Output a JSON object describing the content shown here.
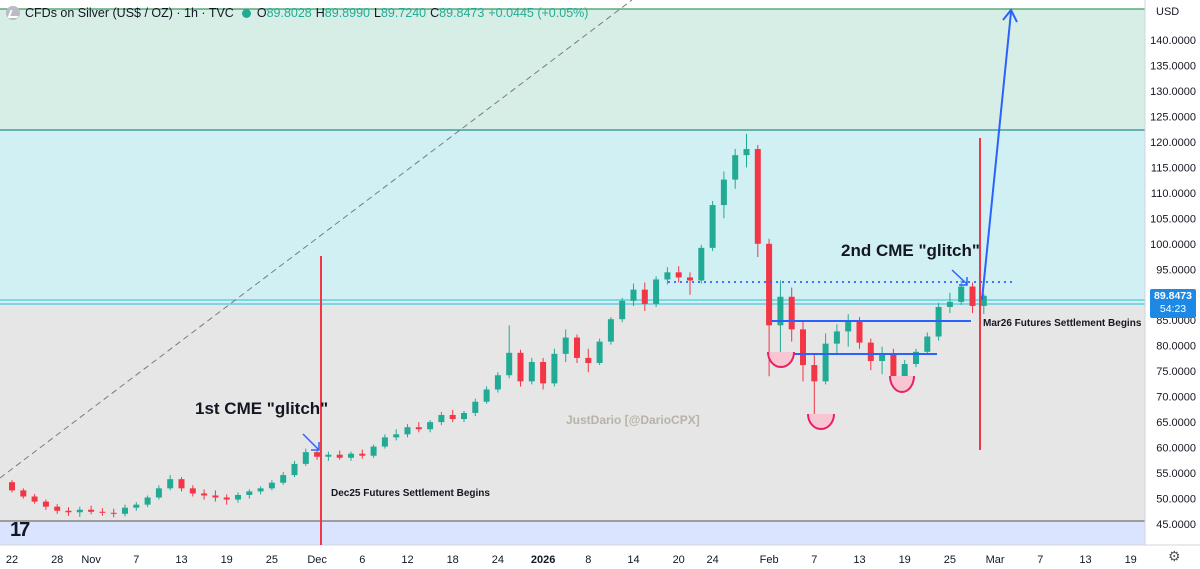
{
  "header": {
    "title": "CFDs on Silver (US$ / OZ) · 1h · TVC",
    "open_label": "O",
    "open": "89.8028",
    "high_label": "H",
    "high": "89.8990",
    "low_label": "L",
    "low": "89.7240",
    "close_label": "C",
    "close": "89.8473",
    "change": "+0.0445 (+0.05%)"
  },
  "currency": "USD",
  "price_tag": {
    "price": "89.8473",
    "countdown": "54:23"
  },
  "watermark": "JustDario [@DarioCPX]",
  "logo": "17",
  "annotations": {
    "first_glitch": "1st CME \"glitch\"",
    "second_glitch": "2nd CME \"glitch\"",
    "dec_settlement": "Dec25 Futures Settlement Begins",
    "mar_settlement": "Mar26 Futures Settlement Begins"
  },
  "colors": {
    "up": "#22ab94",
    "down": "#f23645",
    "band_green": "#d7eee6",
    "band_cyan": "#d0f0f4",
    "band_grey": "#e6e6e6",
    "band_blue": "#dbe4ff",
    "red_line": "#f23645",
    "blue": "#2962ff",
    "level_green": "#3e9b5b",
    "level_teal": "#2a8c8a",
    "level_cyan": "#22c3d6",
    "level_grey": "#787b86"
  },
  "chart_data": {
    "type": "candlestick",
    "y_axis": {
      "unit": "USD",
      "range": [
        42,
        147
      ],
      "ticks": [
        "45.0000",
        "50.0000",
        "55.0000",
        "60.0000",
        "65.0000",
        "70.0000",
        "75.0000",
        "80.0000",
        "85.0000",
        "90.0000",
        "95.0000",
        "100.0000",
        "105.0000",
        "110.0000",
        "115.0000",
        "120.0000",
        "125.0000",
        "130.0000",
        "135.0000",
        "140.0000"
      ]
    },
    "x_axis": {
      "ticks": [
        {
          "label": "22",
          "i": 0
        },
        {
          "label": "28",
          "i": 4
        },
        {
          "label": "Nov",
          "i": 7
        },
        {
          "label": "7",
          "i": 11
        },
        {
          "label": "13",
          "i": 15
        },
        {
          "label": "19",
          "i": 19
        },
        {
          "label": "25",
          "i": 23
        },
        {
          "label": "Dec",
          "i": 27
        },
        {
          "label": "6",
          "i": 31
        },
        {
          "label": "12",
          "i": 35
        },
        {
          "label": "18",
          "i": 39
        },
        {
          "label": "24",
          "i": 43
        },
        {
          "label": "2026",
          "i": 47,
          "bold": true
        },
        {
          "label": "8",
          "i": 51
        },
        {
          "label": "14",
          "i": 55
        },
        {
          "label": "20",
          "i": 59
        },
        {
          "label": "24",
          "i": 62
        },
        {
          "label": "Feb",
          "i": 67
        },
        {
          "label": "7",
          "i": 71
        },
        {
          "label": "13",
          "i": 75
        },
        {
          "label": "19",
          "i": 79
        },
        {
          "label": "25",
          "i": 83
        },
        {
          "label": "Mar",
          "i": 87
        },
        {
          "label": "7",
          "i": 91
        },
        {
          "label": "13",
          "i": 95
        },
        {
          "label": "19",
          "i": 99
        }
      ]
    },
    "series": [
      {
        "values": [
          {
            "i": 0,
            "o": 53.2,
            "h": 53.6,
            "l": 51.2,
            "c": 51.6
          },
          {
            "i": 1,
            "o": 51.6,
            "h": 52.0,
            "l": 50.0,
            "c": 50.4
          },
          {
            "i": 2,
            "o": 50.4,
            "h": 50.9,
            "l": 49.0,
            "c": 49.4
          },
          {
            "i": 3,
            "o": 49.4,
            "h": 49.8,
            "l": 47.8,
            "c": 48.4
          },
          {
            "i": 4,
            "o": 48.4,
            "h": 48.9,
            "l": 47.0,
            "c": 47.6
          },
          {
            "i": 5,
            "o": 47.6,
            "h": 48.3,
            "l": 46.6,
            "c": 47.3
          },
          {
            "i": 6,
            "o": 47.3,
            "h": 48.4,
            "l": 46.4,
            "c": 47.8
          },
          {
            "i": 7,
            "o": 47.8,
            "h": 48.6,
            "l": 46.9,
            "c": 47.4
          },
          {
            "i": 8,
            "o": 47.4,
            "h": 48.1,
            "l": 46.6,
            "c": 47.2
          },
          {
            "i": 9,
            "o": 47.2,
            "h": 48.0,
            "l": 46.3,
            "c": 47.0
          },
          {
            "i": 10,
            "o": 47.0,
            "h": 48.8,
            "l": 46.5,
            "c": 48.2
          },
          {
            "i": 11,
            "o": 48.2,
            "h": 49.3,
            "l": 47.6,
            "c": 48.8
          },
          {
            "i": 12,
            "o": 48.8,
            "h": 50.6,
            "l": 48.3,
            "c": 50.2
          },
          {
            "i": 13,
            "o": 50.2,
            "h": 52.6,
            "l": 49.8,
            "c": 52.0
          },
          {
            "i": 14,
            "o": 52.0,
            "h": 54.6,
            "l": 51.6,
            "c": 53.8
          },
          {
            "i": 15,
            "o": 53.8,
            "h": 54.2,
            "l": 51.4,
            "c": 52.0
          },
          {
            "i": 16,
            "o": 52.0,
            "h": 52.6,
            "l": 50.4,
            "c": 51.0
          },
          {
            "i": 17,
            "o": 51.0,
            "h": 51.8,
            "l": 49.8,
            "c": 50.6
          },
          {
            "i": 18,
            "o": 50.6,
            "h": 51.6,
            "l": 49.4,
            "c": 50.2
          },
          {
            "i": 19,
            "o": 50.2,
            "h": 50.8,
            "l": 48.8,
            "c": 49.8
          },
          {
            "i": 20,
            "o": 49.8,
            "h": 51.2,
            "l": 49.2,
            "c": 50.7
          },
          {
            "i": 21,
            "o": 50.7,
            "h": 51.8,
            "l": 50.0,
            "c": 51.4
          },
          {
            "i": 22,
            "o": 51.4,
            "h": 52.4,
            "l": 50.8,
            "c": 52.0
          },
          {
            "i": 23,
            "o": 52.0,
            "h": 53.6,
            "l": 51.6,
            "c": 53.1
          },
          {
            "i": 24,
            "o": 53.1,
            "h": 55.2,
            "l": 52.7,
            "c": 54.6
          },
          {
            "i": 25,
            "o": 54.6,
            "h": 57.4,
            "l": 54.2,
            "c": 56.8
          },
          {
            "i": 26,
            "o": 56.8,
            "h": 59.8,
            "l": 56.4,
            "c": 59.1
          },
          {
            "i": 27,
            "o": 59.1,
            "h": 59.6,
            "l": 57.6,
            "c": 58.2
          },
          {
            "i": 28,
            "o": 58.2,
            "h": 59.2,
            "l": 57.4,
            "c": 58.6
          },
          {
            "i": 29,
            "o": 58.6,
            "h": 59.4,
            "l": 57.6,
            "c": 58.0
          },
          {
            "i": 30,
            "o": 58.0,
            "h": 59.2,
            "l": 57.4,
            "c": 58.8
          },
          {
            "i": 31,
            "o": 58.8,
            "h": 59.6,
            "l": 57.8,
            "c": 58.4
          },
          {
            "i": 32,
            "o": 58.4,
            "h": 60.6,
            "l": 58.0,
            "c": 60.2
          },
          {
            "i": 33,
            "o": 60.2,
            "h": 62.6,
            "l": 59.8,
            "c": 62.0
          },
          {
            "i": 34,
            "o": 62.0,
            "h": 63.6,
            "l": 61.4,
            "c": 62.6
          },
          {
            "i": 35,
            "o": 62.6,
            "h": 64.6,
            "l": 62.0,
            "c": 64.0
          },
          {
            "i": 36,
            "o": 64.0,
            "h": 65.0,
            "l": 63.0,
            "c": 63.6
          },
          {
            "i": 37,
            "o": 63.6,
            "h": 65.4,
            "l": 63.0,
            "c": 65.0
          },
          {
            "i": 38,
            "o": 65.0,
            "h": 67.0,
            "l": 64.4,
            "c": 66.4
          },
          {
            "i": 39,
            "o": 66.4,
            "h": 67.4,
            "l": 65.0,
            "c": 65.6
          },
          {
            "i": 40,
            "o": 65.6,
            "h": 67.2,
            "l": 65.0,
            "c": 66.8
          },
          {
            "i": 41,
            "o": 66.8,
            "h": 69.6,
            "l": 66.2,
            "c": 69.0
          },
          {
            "i": 42,
            "o": 69.0,
            "h": 72.0,
            "l": 68.6,
            "c": 71.4
          },
          {
            "i": 43,
            "o": 71.4,
            "h": 74.8,
            "l": 70.8,
            "c": 74.2
          },
          {
            "i": 44,
            "o": 74.2,
            "h": 84.0,
            "l": 73.6,
            "c": 78.6
          },
          {
            "i": 45,
            "o": 78.6,
            "h": 79.2,
            "l": 72.0,
            "c": 73.0
          },
          {
            "i": 46,
            "o": 73.0,
            "h": 77.6,
            "l": 72.4,
            "c": 76.8
          },
          {
            "i": 47,
            "o": 76.8,
            "h": 77.6,
            "l": 71.4,
            "c": 72.6
          },
          {
            "i": 48,
            "o": 72.6,
            "h": 79.4,
            "l": 72.0,
            "c": 78.4
          },
          {
            "i": 49,
            "o": 78.4,
            "h": 83.2,
            "l": 76.8,
            "c": 81.6
          },
          {
            "i": 50,
            "o": 81.6,
            "h": 82.2,
            "l": 76.6,
            "c": 77.6
          },
          {
            "i": 51,
            "o": 77.6,
            "h": 79.4,
            "l": 74.8,
            "c": 76.6
          },
          {
            "i": 52,
            "o": 76.6,
            "h": 81.4,
            "l": 76.2,
            "c": 80.8
          },
          {
            "i": 53,
            "o": 80.8,
            "h": 85.6,
            "l": 80.2,
            "c": 85.2
          },
          {
            "i": 54,
            "o": 85.2,
            "h": 89.4,
            "l": 84.6,
            "c": 88.8
          },
          {
            "i": 55,
            "o": 88.8,
            "h": 92.2,
            "l": 87.8,
            "c": 91.0
          },
          {
            "i": 56,
            "o": 91.0,
            "h": 92.4,
            "l": 86.8,
            "c": 88.2
          },
          {
            "i": 57,
            "o": 88.2,
            "h": 93.6,
            "l": 87.6,
            "c": 93.0
          },
          {
            "i": 58,
            "o": 93.0,
            "h": 95.4,
            "l": 92.0,
            "c": 94.4
          },
          {
            "i": 59,
            "o": 94.4,
            "h": 95.6,
            "l": 92.4,
            "c": 93.4
          },
          {
            "i": 60,
            "o": 93.4,
            "h": 94.4,
            "l": 90.0,
            "c": 92.8
          },
          {
            "i": 61,
            "o": 92.8,
            "h": 99.8,
            "l": 92.2,
            "c": 99.2
          },
          {
            "i": 62,
            "o": 99.2,
            "h": 108.4,
            "l": 98.6,
            "c": 107.6
          },
          {
            "i": 63,
            "o": 107.6,
            "h": 114.2,
            "l": 105.0,
            "c": 112.6
          },
          {
            "i": 64,
            "o": 112.6,
            "h": 118.6,
            "l": 110.8,
            "c": 117.4
          },
          {
            "i": 65,
            "o": 117.4,
            "h": 121.6,
            "l": 115.0,
            "c": 118.6
          },
          {
            "i": 66,
            "o": 118.6,
            "h": 119.4,
            "l": 97.4,
            "c": 100.0
          },
          {
            "i": 67,
            "o": 100.0,
            "h": 101.0,
            "l": 74.0,
            "c": 84.0
          },
          {
            "i": 68,
            "o": 84.0,
            "h": 92.8,
            "l": 77.8,
            "c": 89.6
          },
          {
            "i": 69,
            "o": 89.6,
            "h": 91.4,
            "l": 80.8,
            "c": 83.2
          },
          {
            "i": 70,
            "o": 83.2,
            "h": 84.8,
            "l": 73.0,
            "c": 76.2
          },
          {
            "i": 71,
            "o": 76.2,
            "h": 78.4,
            "l": 66.4,
            "c": 73.0
          },
          {
            "i": 72,
            "o": 73.0,
            "h": 82.4,
            "l": 72.4,
            "c": 80.4
          },
          {
            "i": 73,
            "o": 80.4,
            "h": 84.2,
            "l": 78.2,
            "c": 82.8
          },
          {
            "i": 74,
            "o": 82.8,
            "h": 86.2,
            "l": 79.8,
            "c": 84.8
          },
          {
            "i": 75,
            "o": 84.8,
            "h": 85.6,
            "l": 79.4,
            "c": 80.6
          },
          {
            "i": 76,
            "o": 80.6,
            "h": 81.4,
            "l": 75.2,
            "c": 77.0
          },
          {
            "i": 77,
            "o": 77.0,
            "h": 79.8,
            "l": 74.4,
            "c": 78.2
          },
          {
            "i": 78,
            "o": 78.2,
            "h": 79.4,
            "l": 72.0,
            "c": 73.6
          },
          {
            "i": 79,
            "o": 73.6,
            "h": 77.2,
            "l": 73.0,
            "c": 76.4
          },
          {
            "i": 80,
            "o": 76.4,
            "h": 79.4,
            "l": 75.8,
            "c": 78.8
          },
          {
            "i": 81,
            "o": 78.8,
            "h": 82.6,
            "l": 78.2,
            "c": 81.8
          },
          {
            "i": 82,
            "o": 81.8,
            "h": 88.4,
            "l": 81.0,
            "c": 87.6
          },
          {
            "i": 83,
            "o": 87.6,
            "h": 90.4,
            "l": 86.4,
            "c": 88.6
          },
          {
            "i": 84,
            "o": 88.6,
            "h": 92.8,
            "l": 88.0,
            "c": 91.6
          },
          {
            "i": 85,
            "o": 91.6,
            "h": 92.4,
            "l": 86.4,
            "c": 87.8
          },
          {
            "i": 86,
            "o": 87.8,
            "h": 90.2,
            "l": 86.2,
            "c": 89.8
          }
        ]
      }
    ]
  }
}
